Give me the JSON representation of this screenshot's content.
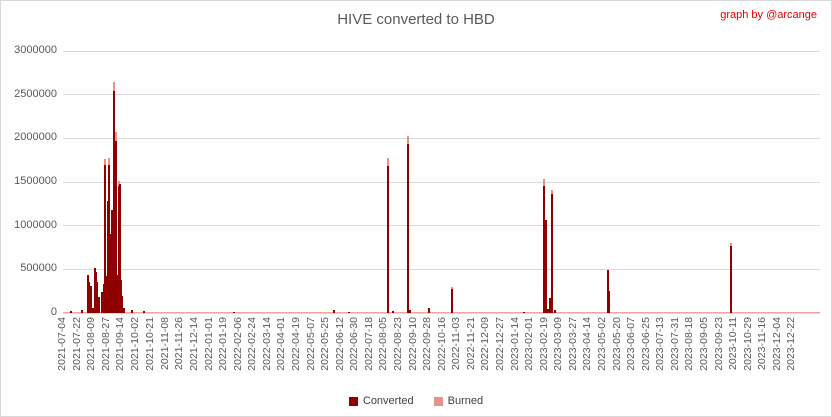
{
  "header": {
    "title": "HIVE converted to HBD",
    "credit": "graph by @arcange"
  },
  "legend": {
    "items": [
      {
        "label": "Converted",
        "color": "#8f0000"
      },
      {
        "label": "Burned",
        "color": "#e5938a"
      }
    ]
  },
  "colors": {
    "title": "#595959",
    "credit": "#e60000",
    "axis_labels": "#595959",
    "gridline": "#d9d9d9",
    "border": "#d9d9d9",
    "zero_line": "#eda69e",
    "converted": "#8f0000",
    "burned": "#e5938a",
    "background": "#ffffff"
  },
  "chart_data": {
    "type": "bar",
    "stacked": true,
    "title": "HIVE converted to HBD",
    "legend_position": "bottom",
    "grid": true,
    "x_axis": {
      "start": "2021-07-04",
      "end": "2024-01-25",
      "tick_labels": [
        "2021-07-04",
        "2021-07-22",
        "2021-08-09",
        "2021-08-27",
        "2021-09-14",
        "2021-10-02",
        "2021-10-21",
        "2021-11-08",
        "2021-11-26",
        "2021-12-14",
        "2022-01-01",
        "2022-01-19",
        "2022-02-06",
        "2022-02-24",
        "2022-03-14",
        "2022-04-01",
        "2022-04-19",
        "2022-05-07",
        "2022-05-25",
        "2022-06-12",
        "2022-06-30",
        "2022-07-18",
        "2022-08-05",
        "2022-08-23",
        "2022-09-10",
        "2022-09-28",
        "2022-10-16",
        "2022-11-03",
        "2022-11-21",
        "2022-12-09",
        "2022-12-27",
        "2023-01-14",
        "2023-02-01",
        "2023-02-19",
        "2023-03-09",
        "2023-03-27",
        "2023-04-14",
        "2023-05-02",
        "2023-05-20",
        "2023-06-07",
        "2023-06-25",
        "2023-07-13",
        "2023-07-31",
        "2023-08-18",
        "2023-09-05",
        "2023-09-23",
        "2023-10-11",
        "2023-10-29",
        "2023-11-16",
        "2023-12-04",
        "2023-12-22"
      ]
    },
    "y_axis": {
      "min": 0,
      "max": 3000000,
      "step": 500000,
      "ticks": [
        3000000,
        2500000,
        2000000,
        1500000,
        1000000,
        500000,
        0
      ]
    },
    "series_names": [
      "Converted",
      "Burned"
    ],
    "bars": [
      {
        "date": "2021-07-14",
        "converted": 20000,
        "burned": 0
      },
      {
        "date": "2021-07-28",
        "converted": 30000,
        "burned": 0
      },
      {
        "date": "2021-08-04",
        "converted": 430000,
        "burned": 0
      },
      {
        "date": "2021-08-05",
        "converted": 360000,
        "burned": 0
      },
      {
        "date": "2021-08-07",
        "converted": 310000,
        "burned": 0
      },
      {
        "date": "2021-08-10",
        "converted": 60000,
        "burned": 0
      },
      {
        "date": "2021-08-13",
        "converted": 520000,
        "burned": 0
      },
      {
        "date": "2021-08-14",
        "converted": 470000,
        "burned": 0
      },
      {
        "date": "2021-08-15",
        "converted": 350000,
        "burned": 0
      },
      {
        "date": "2021-08-18",
        "converted": 180000,
        "burned": 0
      },
      {
        "date": "2021-08-21",
        "converted": 240000,
        "burned": 0
      },
      {
        "date": "2021-08-23",
        "converted": 150000,
        "burned": 0
      },
      {
        "date": "2021-08-24",
        "converted": 330000,
        "burned": 0
      },
      {
        "date": "2021-08-25",
        "converted": 1700000,
        "burned": 60000
      },
      {
        "date": "2021-08-26",
        "converted": 380000,
        "burned": 0
      },
      {
        "date": "2021-08-27",
        "converted": 420000,
        "burned": 0
      },
      {
        "date": "2021-08-28",
        "converted": 1280000,
        "burned": 0
      },
      {
        "date": "2021-08-29",
        "converted": 450000,
        "burned": 0
      },
      {
        "date": "2021-08-30",
        "converted": 1700000,
        "burned": 70000
      },
      {
        "date": "2021-08-31",
        "converted": 900000,
        "burned": 0
      },
      {
        "date": "2021-09-01",
        "converted": 440000,
        "burned": 0
      },
      {
        "date": "2021-09-02",
        "converted": 1180000,
        "burned": 0
      },
      {
        "date": "2021-09-03",
        "converted": 430000,
        "burned": 0
      },
      {
        "date": "2021-09-04",
        "converted": 400000,
        "burned": 0
      },
      {
        "date": "2021-09-05",
        "converted": 2540000,
        "burned": 110000
      },
      {
        "date": "2021-09-06",
        "converted": 750000,
        "burned": 0
      },
      {
        "date": "2021-09-07",
        "converted": 440000,
        "burned": 0
      },
      {
        "date": "2021-09-08",
        "converted": 1970000,
        "burned": 100000
      },
      {
        "date": "2021-09-09",
        "converted": 430000,
        "burned": 0
      },
      {
        "date": "2021-09-10",
        "converted": 410000,
        "burned": 0
      },
      {
        "date": "2021-09-11",
        "converted": 1450000,
        "burned": 60000
      },
      {
        "date": "2021-09-12",
        "converted": 1480000,
        "burned": 0
      },
      {
        "date": "2021-09-13",
        "converted": 420000,
        "burned": 0
      },
      {
        "date": "2021-09-14",
        "converted": 380000,
        "burned": 0
      },
      {
        "date": "2021-09-15",
        "converted": 200000,
        "burned": 0
      },
      {
        "date": "2021-09-17",
        "converted": 60000,
        "burned": 0
      },
      {
        "date": "2021-09-27",
        "converted": 30000,
        "burned": 0
      },
      {
        "date": "2021-10-12",
        "converted": 20000,
        "burned": 0
      },
      {
        "date": "2022-01-31",
        "converted": 15000,
        "burned": 0
      },
      {
        "date": "2022-06-04",
        "converted": 35000,
        "burned": 0
      },
      {
        "date": "2022-06-22",
        "converted": 12000,
        "burned": 0
      },
      {
        "date": "2022-08-09",
        "converted": 1680000,
        "burned": 95000
      },
      {
        "date": "2022-08-15",
        "converted": 25000,
        "burned": 0
      },
      {
        "date": "2022-09-03",
        "converted": 1930000,
        "burned": 100000
      },
      {
        "date": "2022-09-06",
        "converted": 30000,
        "burned": 0
      },
      {
        "date": "2022-09-29",
        "converted": 60000,
        "burned": 0
      },
      {
        "date": "2022-10-27",
        "converted": 280000,
        "burned": 15000
      },
      {
        "date": "2023-01-25",
        "converted": 10000,
        "burned": 0
      },
      {
        "date": "2023-02-18",
        "converted": 1450000,
        "burned": 80000
      },
      {
        "date": "2023-02-20",
        "converted": 1070000,
        "burned": 0
      },
      {
        "date": "2023-02-23",
        "converted": 45000,
        "burned": 0
      },
      {
        "date": "2023-02-25",
        "converted": 170000,
        "burned": 0
      },
      {
        "date": "2023-02-28",
        "converted": 1360000,
        "burned": 45000
      },
      {
        "date": "2023-03-04",
        "converted": 35000,
        "burned": 0
      },
      {
        "date": "2023-05-08",
        "converted": 490000,
        "burned": 0
      },
      {
        "date": "2023-05-10",
        "converted": 250000,
        "burned": 0
      },
      {
        "date": "2023-10-07",
        "converted": 770000,
        "burned": 30000
      }
    ]
  }
}
